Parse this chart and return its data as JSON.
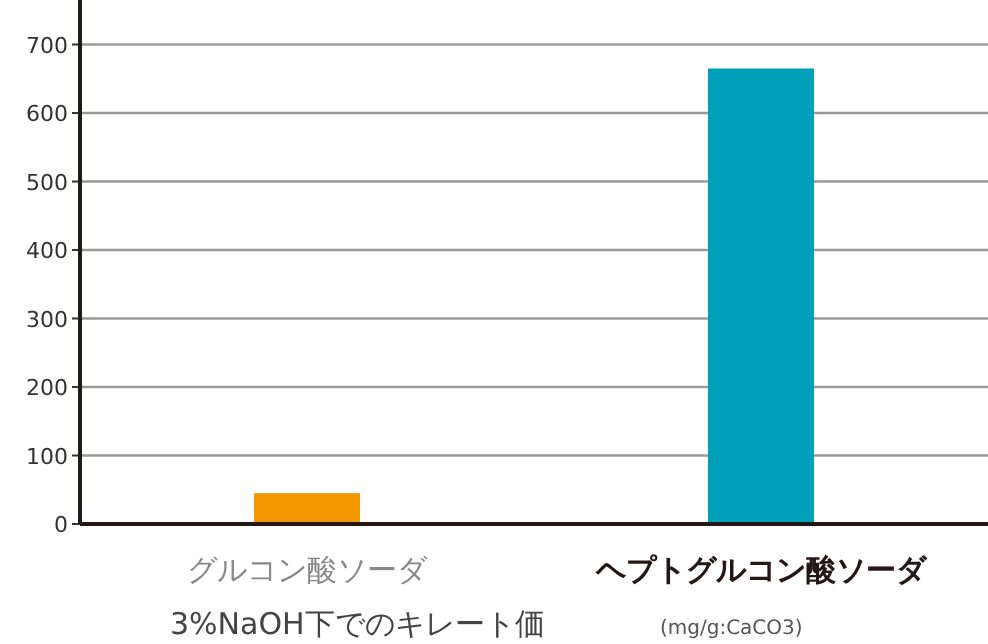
{
  "chart_data": {
    "type": "bar",
    "categories": [
      "グルコン酸ソーダ",
      "ヘプトグルコン酸ソーダ"
    ],
    "values": [
      45,
      665
    ],
    "colors": [
      "#f39800",
      "#00a0bb"
    ],
    "ylim": [
      0,
      765
    ],
    "yticks": [
      0,
      100,
      200,
      300,
      400,
      500,
      600,
      700
    ],
    "grid": "y",
    "xlabel": "3%NaOH下でのキレート価",
    "annotations": [
      "(mg/g:CaCO3)"
    ]
  }
}
